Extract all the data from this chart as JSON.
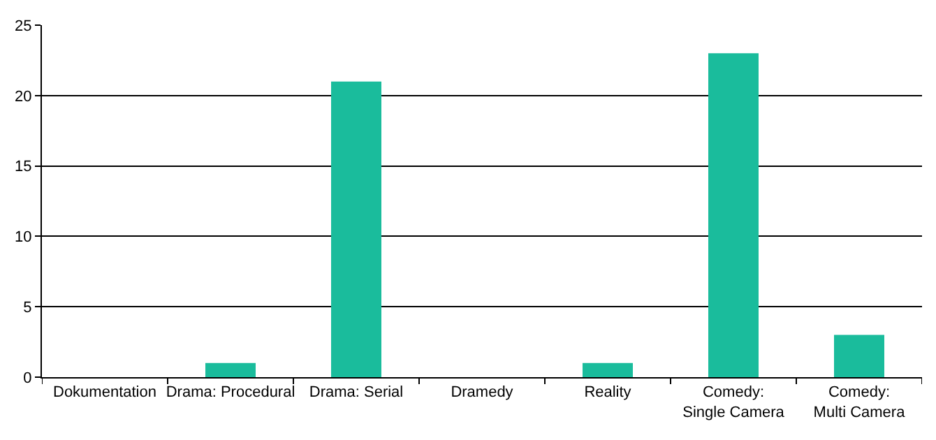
{
  "chart_data": {
    "type": "bar",
    "categories": [
      "Dokumentation",
      "Drama: Procedural",
      "Drama: Serial",
      "Dramedy",
      "Reality",
      "Comedy:\nSingle Camera",
      "Comedy:\nMulti Camera"
    ],
    "values": [
      0,
      1,
      21,
      0,
      1,
      23,
      3
    ],
    "color": "#1abc9c",
    "ylim": [
      0,
      25
    ],
    "yticks": [
      0,
      5,
      10,
      15,
      20,
      25
    ],
    "grid": "y",
    "legend": false
  }
}
